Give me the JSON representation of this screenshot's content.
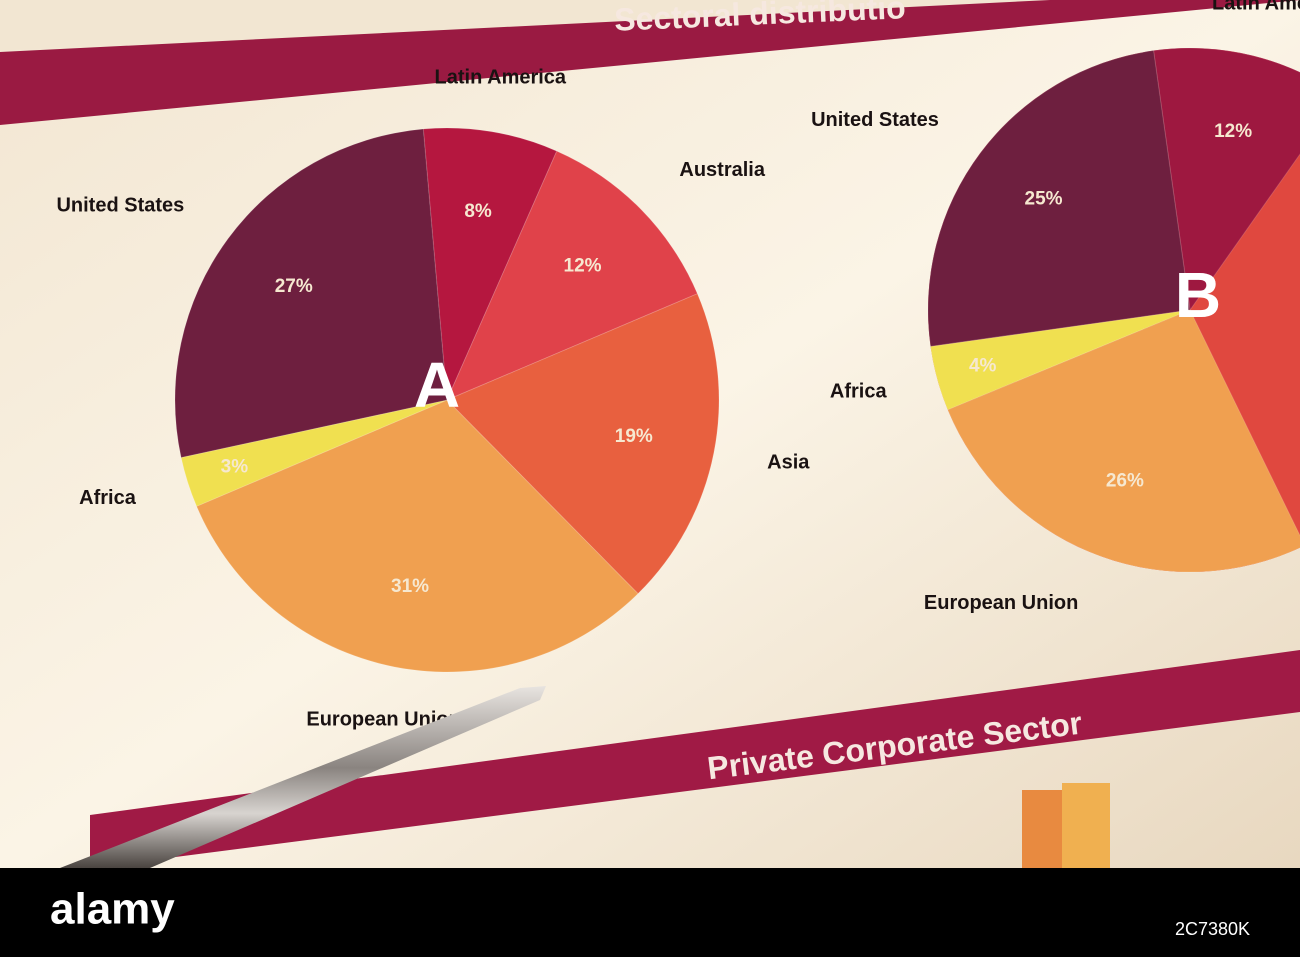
{
  "header": {
    "title": "Sectoral distributio"
  },
  "banner": "Private Corporate Sector",
  "footer": {
    "logo": "alamy",
    "image_id": "2C7380K"
  },
  "chart_data": [
    {
      "type": "pie",
      "label": "A",
      "categories": [
        "Latin America",
        "Australia",
        "Asia",
        "European Union",
        "Africa",
        "United States"
      ],
      "values": [
        8,
        12,
        19,
        31,
        3,
        27
      ],
      "value_labels": [
        "8%",
        "12%",
        "19%",
        "31%",
        "3%",
        "27%"
      ],
      "colors": [
        "#b5173f",
        "#e0424a",
        "#e8603f",
        "#f0a050",
        "#f0e050",
        "#6e1f3f"
      ]
    },
    {
      "type": "pie",
      "label": "B",
      "categories": [
        "Latin Amer",
        "United States",
        "Africa",
        "European Union"
      ],
      "values": [
        12,
        25,
        4,
        26
      ],
      "value_labels": [
        "12%",
        "25%",
        "4%",
        "26%"
      ],
      "colors": [
        "#9e1840",
        "#6e1f3f",
        "#f0e050",
        "#f0a050"
      ]
    }
  ]
}
